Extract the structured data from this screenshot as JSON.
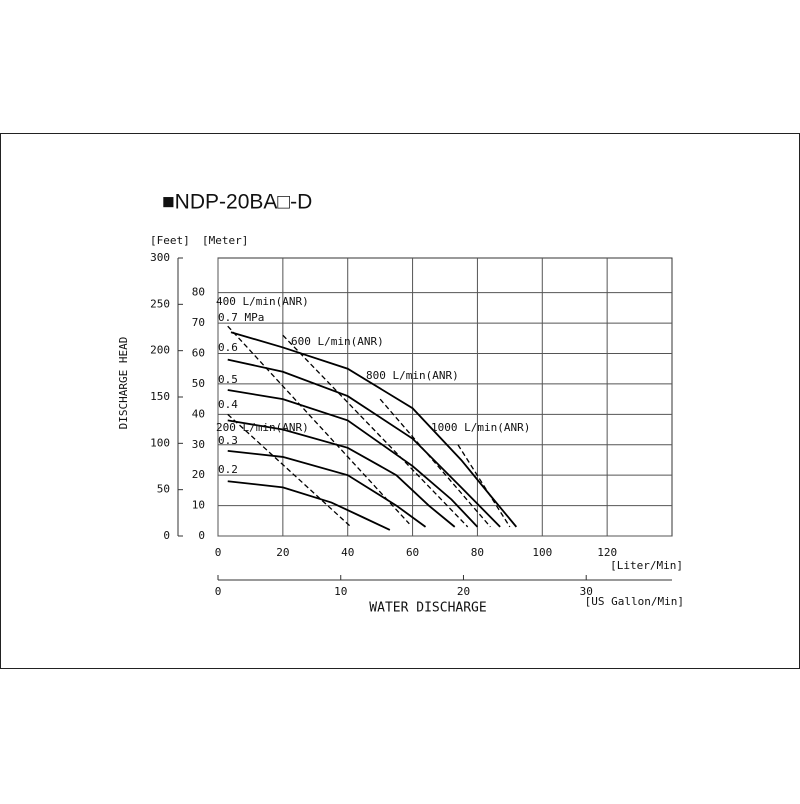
{
  "chart_data": {
    "type": "line",
    "title": "■NDP-20BA□-D",
    "y_label": "DISCHARGE  HEAD",
    "x_label": "WATER  DISCHARGE",
    "x_unit": "[Liter/Min]",
    "x2_unit": "[US Gallon/Min]",
    "y_unit": "[Meter]",
    "y2_unit": "[Feet]",
    "xlim": [
      0,
      140
    ],
    "xticks": [
      0,
      20,
      40,
      60,
      80,
      100,
      120
    ],
    "x2lim": [
      0,
      36.99
    ],
    "x2ticks": [
      0,
      10,
      20,
      30
    ],
    "ylim": [
      0,
      91.4
    ],
    "yticks": [
      0,
      10,
      20,
      30,
      40,
      50,
      60,
      70,
      80
    ],
    "y2lim": [
      0,
      300
    ],
    "y2ticks": [
      0,
      50,
      100,
      150,
      200,
      250,
      300
    ],
    "grid": true,
    "series": [
      {
        "name": "0.7 MPa",
        "color": "#000000",
        "style": "solid",
        "x": [
          4,
          20,
          40,
          60,
          75,
          85,
          92
        ],
        "values": [
          67,
          62,
          55,
          42,
          25,
          12,
          3
        ]
      },
      {
        "name": "0.6",
        "color": "#000000",
        "style": "solid",
        "x": [
          3,
          20,
          40,
          60,
          75,
          87
        ],
        "values": [
          58,
          54,
          46,
          32,
          16,
          3
        ]
      },
      {
        "name": "0.5",
        "color": "#000000",
        "style": "solid",
        "x": [
          3,
          20,
          40,
          60,
          72,
          80
        ],
        "values": [
          48,
          45,
          38,
          23,
          12,
          3
        ]
      },
      {
        "name": "0.4",
        "color": "#000000",
        "style": "solid",
        "x": [
          3,
          20,
          40,
          55,
          65,
          73
        ],
        "values": [
          38,
          35,
          29,
          20,
          10,
          3
        ]
      },
      {
        "name": "0.3",
        "color": "#000000",
        "style": "solid",
        "x": [
          3,
          20,
          40,
          55,
          64
        ],
        "values": [
          28,
          26,
          20,
          10,
          3
        ]
      },
      {
        "name": "0.2",
        "color": "#000000",
        "style": "solid",
        "x": [
          3,
          20,
          35,
          45,
          53
        ],
        "values": [
          18,
          16,
          11,
          6,
          2
        ]
      },
      {
        "name": "200 L/min(ANR)",
        "color": "#000000",
        "style": "dashed",
        "x": [
          3,
          41
        ],
        "values": [
          40,
          3
        ]
      },
      {
        "name": "400 L/min(ANR)",
        "color": "#000000",
        "style": "dashed",
        "x": [
          3,
          59
        ],
        "values": [
          69,
          4
        ]
      },
      {
        "name": "600 L/min(ANR)",
        "color": "#000000",
        "style": "dashed",
        "x": [
          20,
          77
        ],
        "values": [
          66,
          3
        ]
      },
      {
        "name": "800 L/min(ANR)",
        "color": "#000000",
        "style": "dashed",
        "x": [
          50,
          84
        ],
        "values": [
          45,
          3
        ]
      },
      {
        "name": "1000 L/min(ANR)",
        "color": "#000000",
        "style": "dashed",
        "x": [
          74,
          90
        ],
        "values": [
          30,
          3
        ]
      }
    ]
  }
}
